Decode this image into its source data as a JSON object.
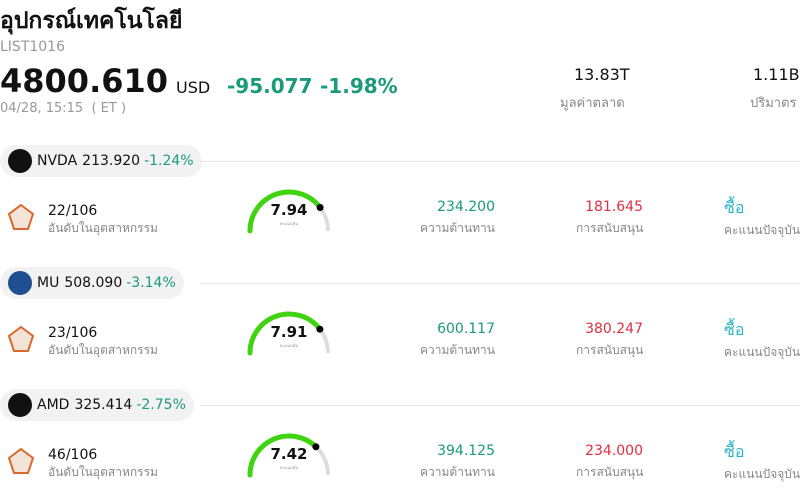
{
  "header": {
    "title": "อุปกรณ์เทคโนโลยี",
    "code": "LIST1016",
    "price": "4800.610",
    "currency": "USD",
    "change": "-95.077",
    "change_pct": "-1.98%",
    "time": "04/28, 15:15  ( ET )",
    "stats": [
      {
        "value": "13.83T",
        "label": "มูลค่าตลาด"
      },
      {
        "value": "1.11B",
        "label": "ปริมาตร"
      }
    ]
  },
  "stocks": [
    {
      "ticker": "NVDA",
      "price": "213.920",
      "change": "-1.24%",
      "rank": "22/106",
      "rank_label": "อันดับในอุตสาหกรรม",
      "score": 7.94,
      "score_label": "คะแนนหุ้น",
      "resistance": "234.200",
      "resistance_label": "ความต้านทาน",
      "support": "181.645",
      "support_label": "การสนับสนุน",
      "rating": "ซื้อ",
      "rating_label": "คะแนนปัจจุบัน"
    },
    {
      "ticker": "MU",
      "price": "508.090",
      "change": "-3.14%",
      "rank": "23/106",
      "rank_label": "อันดับในอุตสาหกรรม",
      "score": 7.91,
      "score_label": "คะแนนหุ้น",
      "resistance": "600.117",
      "resistance_label": "ความต้านทาน",
      "support": "380.247",
      "support_label": "การสนับสนุน",
      "rating": "ซื้อ",
      "rating_label": "คะแนนปัจจุบัน"
    },
    {
      "ticker": "AMD",
      "price": "325.414",
      "change": "-2.75%",
      "rank": "46/106",
      "rank_label": "อันดับในอุตสาหกรรม",
      "score": 7.42,
      "score_label": "คะแนนหุ้น",
      "resistance": "394.125",
      "resistance_label": "ความต้านทาน",
      "support": "234.000",
      "support_label": "การสนับสนุน",
      "rating": "ซื้อ",
      "rating_label": "คะแนนปัจจุบัน"
    }
  ]
}
